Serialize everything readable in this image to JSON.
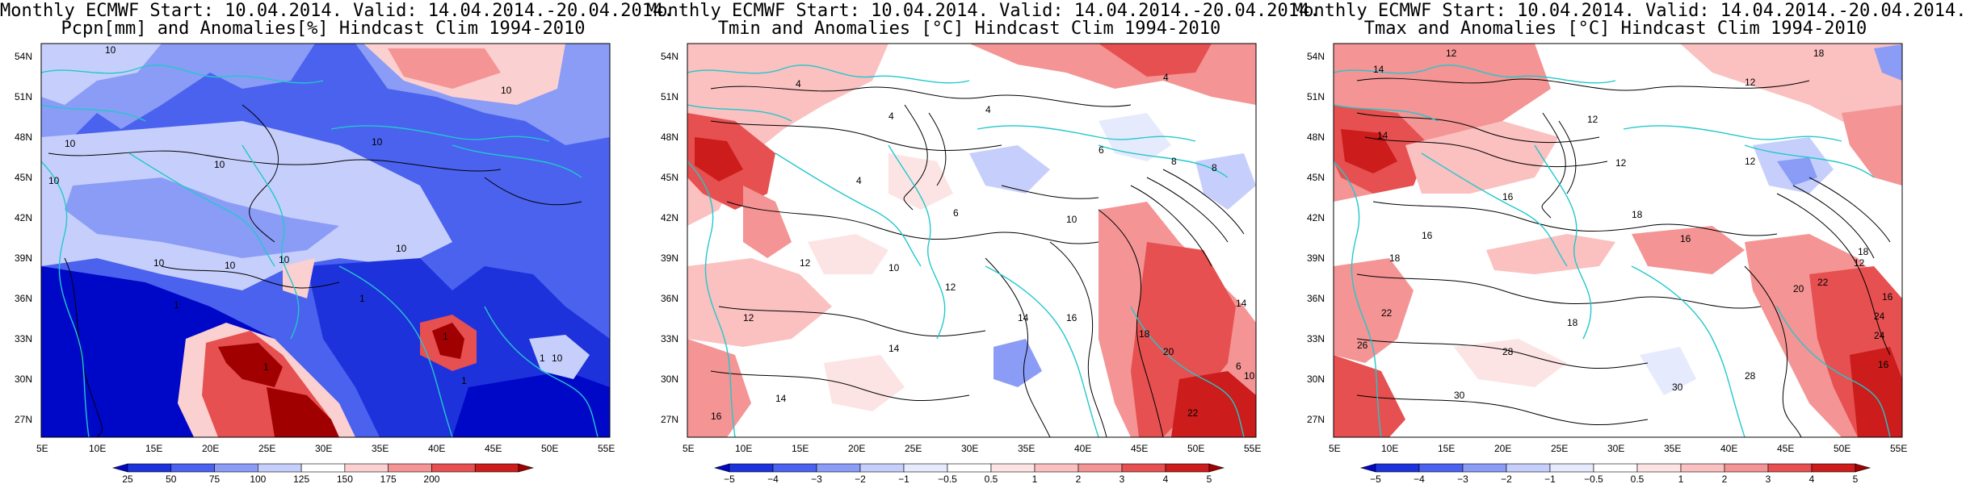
{
  "panels": [
    {
      "title_line1": "Monthly ECMWF Start: 10.04.2014. Valid: 14.04.2014.-20.04.2014.",
      "title_line2": "Pcpn[mm] and Anomalies[%] Hindcast Clim 1994-2010",
      "colorbar_ticks": [
        "25",
        "50",
        "75",
        "100",
        "125",
        "150",
        "175",
        "200"
      ],
      "colorbar_colors": [
        "#0008c8",
        "#1e32dc",
        "#4a62ee",
        "#8a9cf6",
        "#c6cffb",
        "#ffffff",
        "#fbd0d0",
        "#f49494",
        "#e65050",
        "#cc1c1c",
        "#a00000"
      ]
    },
    {
      "title_line1": "Monthly ECMWF Start: 10.04.2014. Valid: 14.04.2014.-20.04.2014.",
      "title_line2": "Tmin and Anomalies [°C] Hindcast Clim 1994-2010",
      "colorbar_ticks": [
        "−5",
        "−4",
        "−3",
        "−2",
        "−1",
        "−0.5",
        "0.5",
        "1",
        "2",
        "3",
        "4",
        "5"
      ],
      "colorbar_colors": [
        "#0008c8",
        "#1e32dc",
        "#4a62ee",
        "#8a9cf6",
        "#c6cffb",
        "#e6eafd",
        "#ffffff",
        "#fde4e4",
        "#fbc0c0",
        "#f49494",
        "#e65050",
        "#cc1c1c",
        "#a00000"
      ]
    },
    {
      "title_line1": "Monthly ECMWF Start: 10.04.2014. Valid: 14.04.2014.-20.04.2014.",
      "title_line2": "Tmax and Anomalies [°C] Hindcast Clim 1994-2010",
      "colorbar_ticks": [
        "−5",
        "−4",
        "−3",
        "−2",
        "−1",
        "−0.5",
        "0.5",
        "1",
        "2",
        "3",
        "4",
        "5"
      ],
      "colorbar_colors": [
        "#0008c8",
        "#1e32dc",
        "#4a62ee",
        "#8a9cf6",
        "#c6cffb",
        "#e6eafd",
        "#ffffff",
        "#fde4e4",
        "#fbc0c0",
        "#f49494",
        "#e65050",
        "#cc1c1c",
        "#a00000"
      ]
    }
  ],
  "lat_labels": [
    "54N",
    "51N",
    "48N",
    "45N",
    "42N",
    "39N",
    "36N",
    "33N",
    "30N",
    "27N"
  ],
  "lon_labels": [
    "5E",
    "10E",
    "15E",
    "20E",
    "25E",
    "30E",
    "35E",
    "40E",
    "45E",
    "50E",
    "55E"
  ],
  "contour_labels": {
    "p0": [
      "10",
      "10",
      "10",
      "10",
      "10",
      "10",
      "10",
      "10",
      "10",
      "10",
      "1",
      "1",
      "1",
      "1",
      "1",
      "1",
      "10"
    ],
    "p1": [
      "4",
      "4",
      "4",
      "4",
      "4",
      "6",
      "8",
      "6",
      "8",
      "10",
      "12",
      "10",
      "12",
      "14",
      "14",
      "12",
      "14",
      "16",
      "16",
      "18",
      "20",
      "22",
      "6",
      "10",
      "14"
    ],
    "p2": [
      "12",
      "14",
      "18",
      "12",
      "12",
      "14",
      "16",
      "18",
      "16",
      "12",
      "12",
      "16",
      "18",
      "22",
      "18",
      "12",
      "20",
      "22",
      "24",
      "26",
      "28",
      "30",
      "30",
      "28",
      "18",
      "16",
      "16",
      "24"
    ]
  },
  "colors": {
    "coast": "#22c8cc",
    "contour": "#000000",
    "frame": "#000000"
  }
}
